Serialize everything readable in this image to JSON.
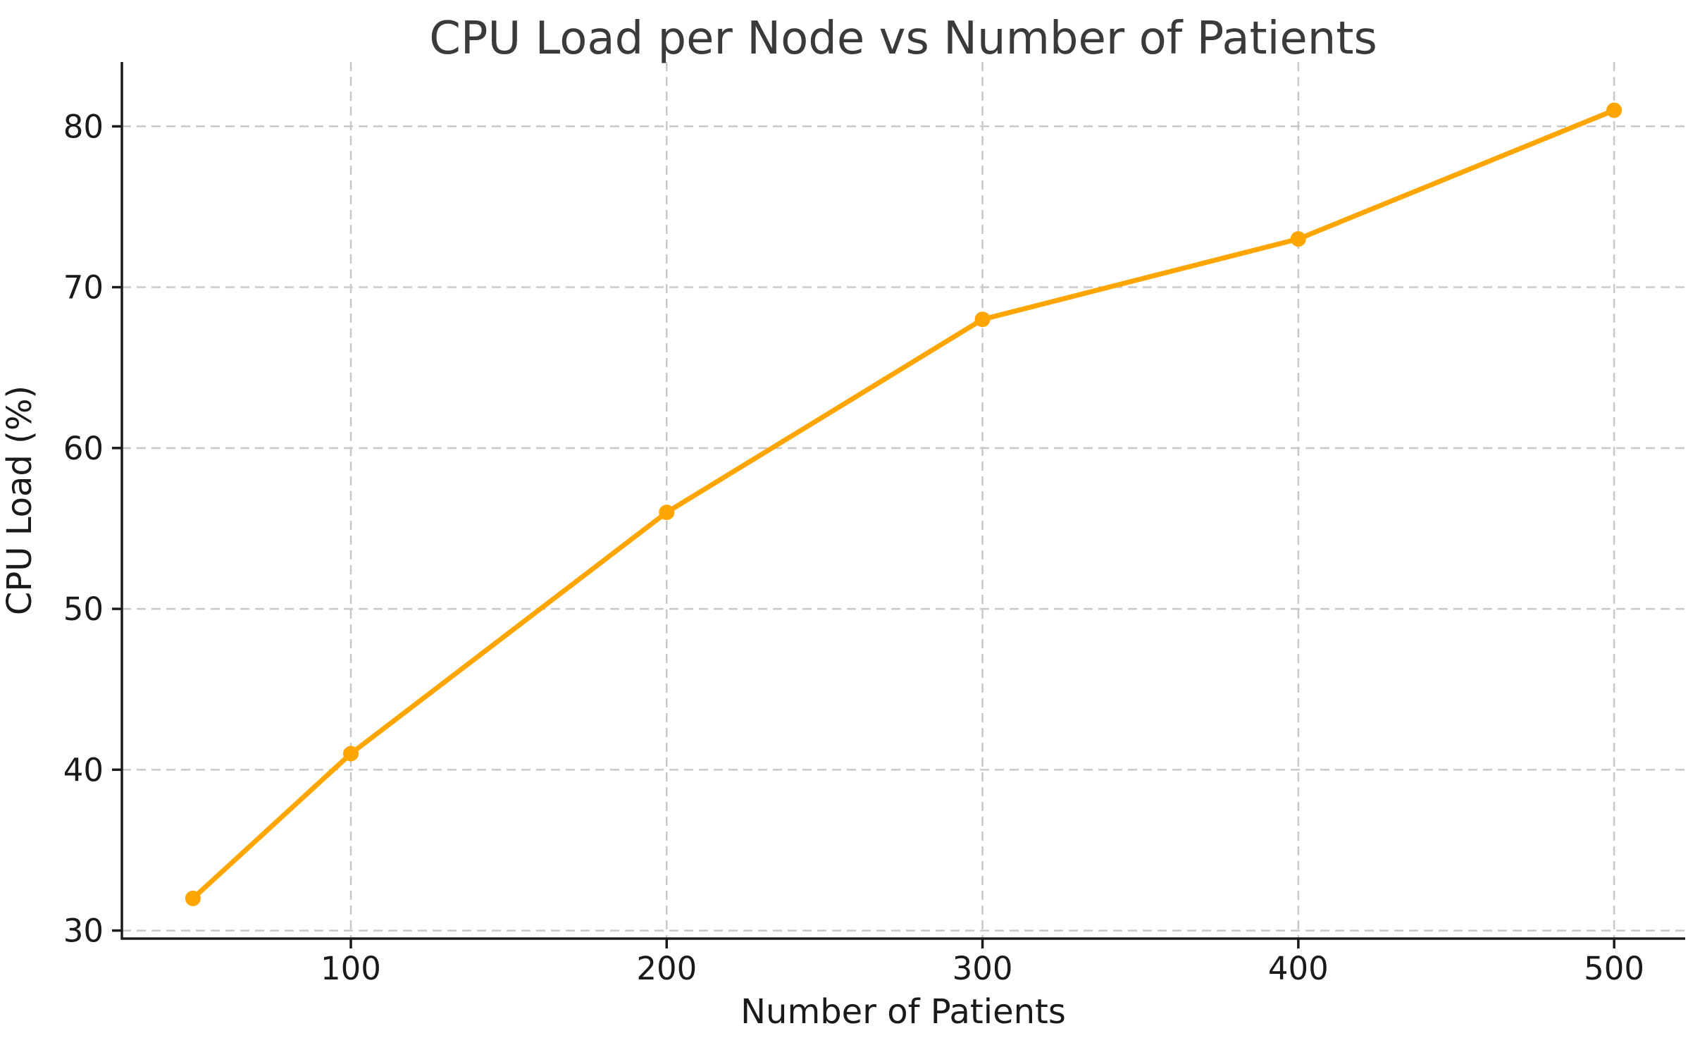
{
  "chart_data": {
    "type": "line",
    "title": "CPU Load per Node vs Number of Patients",
    "xlabel": "Number of Patients",
    "ylabel": "CPU Load (%)",
    "series": [
      {
        "name": "CPU Load",
        "x": [
          50,
          100,
          200,
          300,
          400,
          500
        ],
        "y": [
          32,
          41,
          56,
          68,
          73,
          81
        ],
        "color": "#FFA500",
        "marker": "circle",
        "line_width": 7,
        "marker_radius": 11
      }
    ],
    "xticks": [
      100,
      200,
      300,
      400,
      500
    ],
    "xtick_labels": [
      "100",
      "200",
      "300",
      "400",
      "500"
    ],
    "yticks": [
      30,
      40,
      50,
      60,
      70,
      80
    ],
    "ytick_labels": [
      "30",
      "40",
      "50",
      "60",
      "70",
      "80"
    ],
    "xlim": [
      27.5,
      522.5
    ],
    "ylim": [
      29.5,
      84
    ],
    "grid": true,
    "grid_style": "dashed",
    "legend": "none",
    "colors": {
      "line": "#FFA500",
      "grid": "#c9c9c9",
      "spine": "#1a1a1a",
      "title": "#3a3a3a",
      "text": "#1a1a1a",
      "background": "#ffffff"
    }
  }
}
